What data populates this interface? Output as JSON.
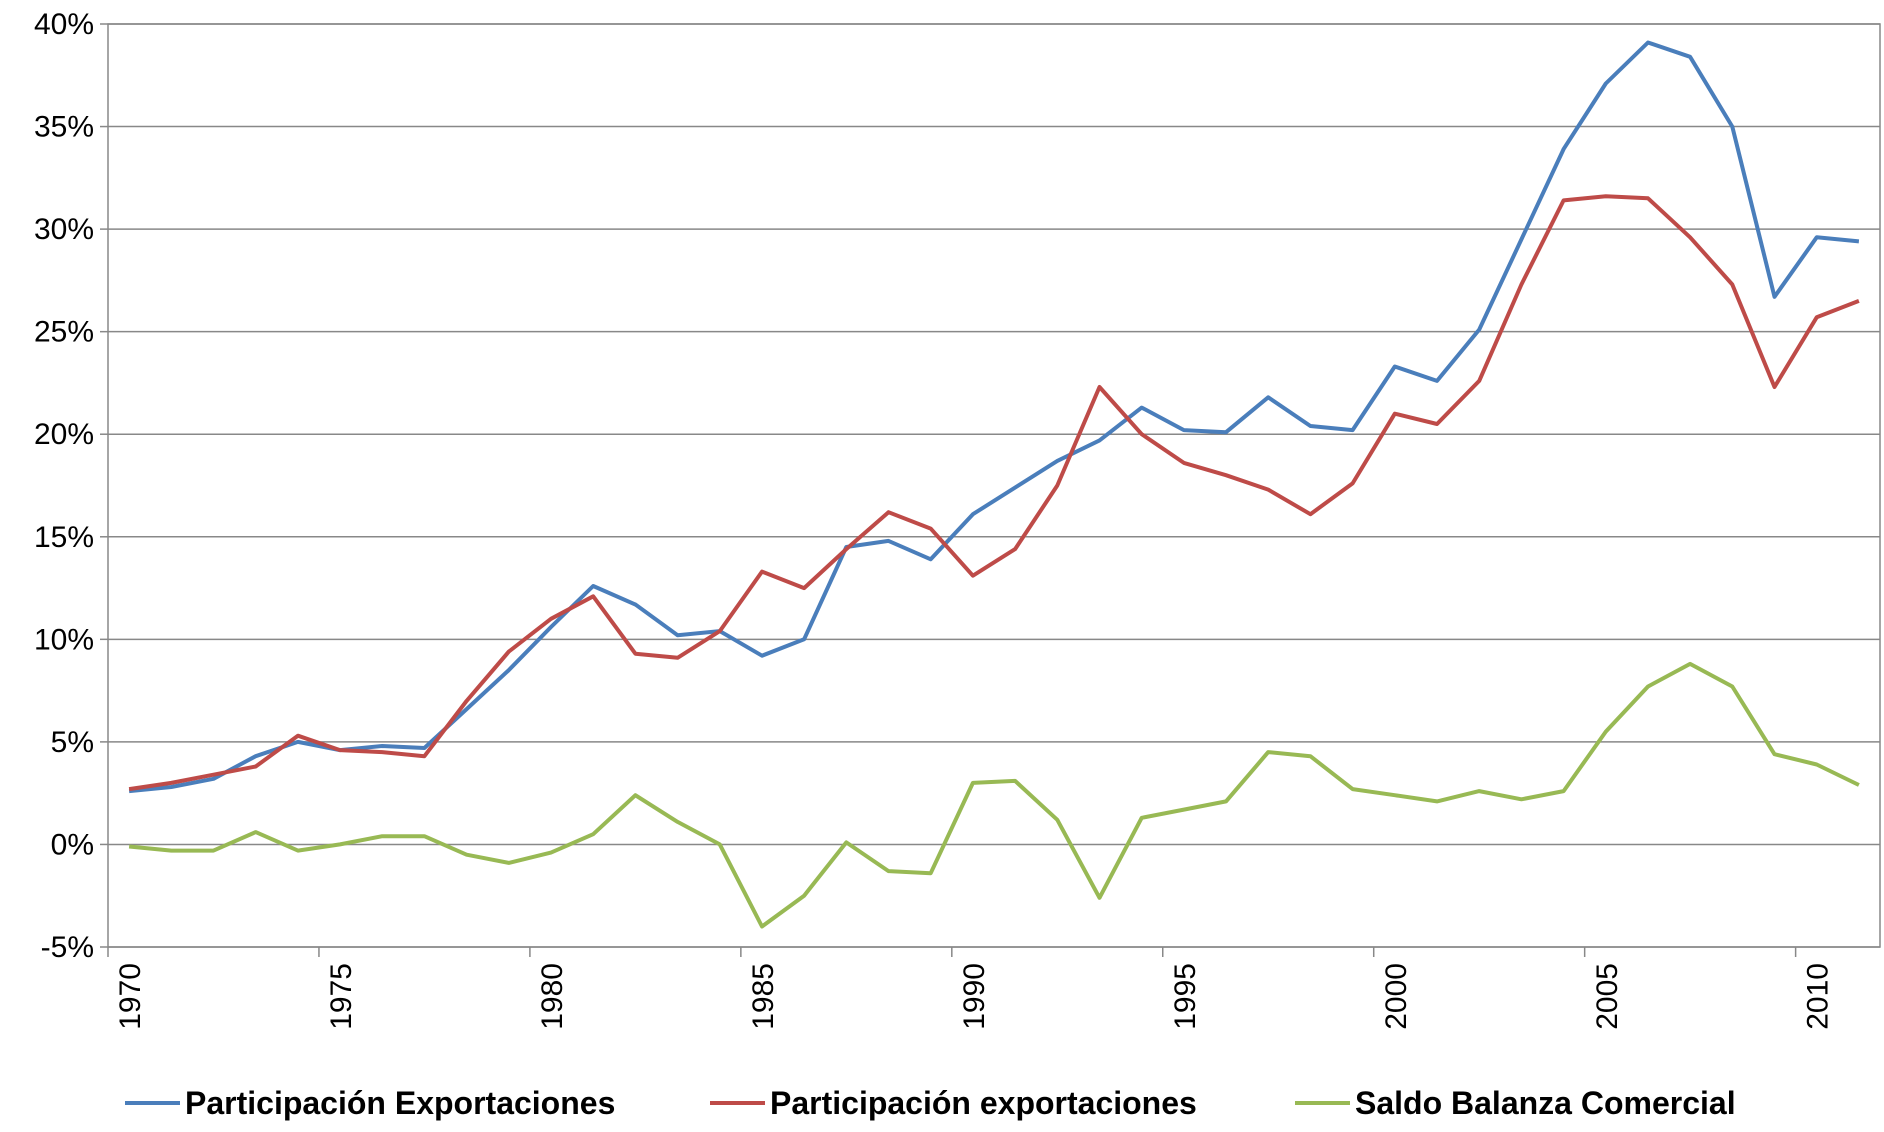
{
  "chart_data": {
    "type": "line",
    "categories": [
      "1970",
      null,
      null,
      null,
      null,
      "1975",
      null,
      null,
      null,
      null,
      "1980",
      null,
      null,
      null,
      null,
      "1985",
      null,
      null,
      null,
      null,
      "1990",
      null,
      null,
      null,
      null,
      "1995",
      null,
      null,
      null,
      null,
      "2000",
      null,
      null,
      null,
      null,
      "2005",
      null,
      null,
      null,
      null,
      "2010",
      null
    ],
    "series": [
      {
        "name": "Participación Exportaciones",
        "color": "#4a7ebb",
        "values": [
          2.6,
          2.8,
          3.2,
          4.3,
          5.0,
          4.6,
          4.8,
          4.7,
          6.6,
          8.5,
          10.6,
          12.6,
          11.7,
          10.2,
          10.4,
          9.2,
          10.0,
          14.5,
          14.8,
          13.9,
          16.1,
          17.4,
          18.7,
          19.7,
          21.3,
          20.2,
          20.1,
          21.8,
          20.4,
          20.2,
          23.3,
          22.6,
          25.1,
          29.5,
          33.9,
          37.1,
          39.1,
          38.4,
          35.0,
          26.7,
          29.6,
          29.4
        ]
      },
      {
        "name": "Participación exportaciones",
        "color": "#be4b48",
        "values": [
          2.7,
          3.0,
          3.4,
          3.8,
          5.3,
          4.6,
          4.5,
          4.3,
          7.0,
          9.4,
          11.0,
          12.1,
          9.3,
          9.1,
          10.4,
          13.3,
          12.5,
          14.4,
          16.2,
          15.4,
          13.1,
          14.4,
          17.5,
          22.3,
          20.0,
          18.6,
          18.0,
          17.3,
          16.1,
          17.6,
          21.0,
          20.5,
          22.6,
          27.3,
          31.4,
          31.6,
          31.5,
          29.6,
          27.3,
          22.3,
          25.7,
          26.5
        ]
      },
      {
        "name": "Saldo Balanza Comercial",
        "color": "#98b954",
        "values": [
          -0.1,
          -0.3,
          -0.3,
          0.6,
          -0.3,
          0.0,
          0.4,
          0.4,
          -0.5,
          -0.9,
          -0.4,
          0.5,
          2.4,
          1.1,
          0.0,
          -4.0,
          -2.5,
          0.1,
          -1.3,
          -1.4,
          3.0,
          3.1,
          1.2,
          -2.6,
          1.3,
          1.7,
          2.1,
          4.5,
          4.3,
          2.7,
          2.4,
          2.1,
          2.6,
          2.2,
          2.6,
          5.5,
          7.7,
          8.8,
          7.7,
          4.4,
          3.9,
          2.9
        ]
      }
    ],
    "ylim": [
      -5,
      40
    ],
    "yticks": [
      {
        "value": -5,
        "label": "-5%"
      },
      {
        "value": 0,
        "label": "0%"
      },
      {
        "value": 5,
        "label": "5%"
      },
      {
        "value": 10,
        "label": "10%"
      },
      {
        "value": 15,
        "label": "15%"
      },
      {
        "value": 20,
        "label": "20%"
      },
      {
        "value": 25,
        "label": "25%"
      },
      {
        "value": 30,
        "label": "30%"
      },
      {
        "value": 35,
        "label": "35%"
      },
      {
        "value": 40,
        "label": "40%"
      }
    ],
    "grid": true,
    "legend": "bottom"
  }
}
